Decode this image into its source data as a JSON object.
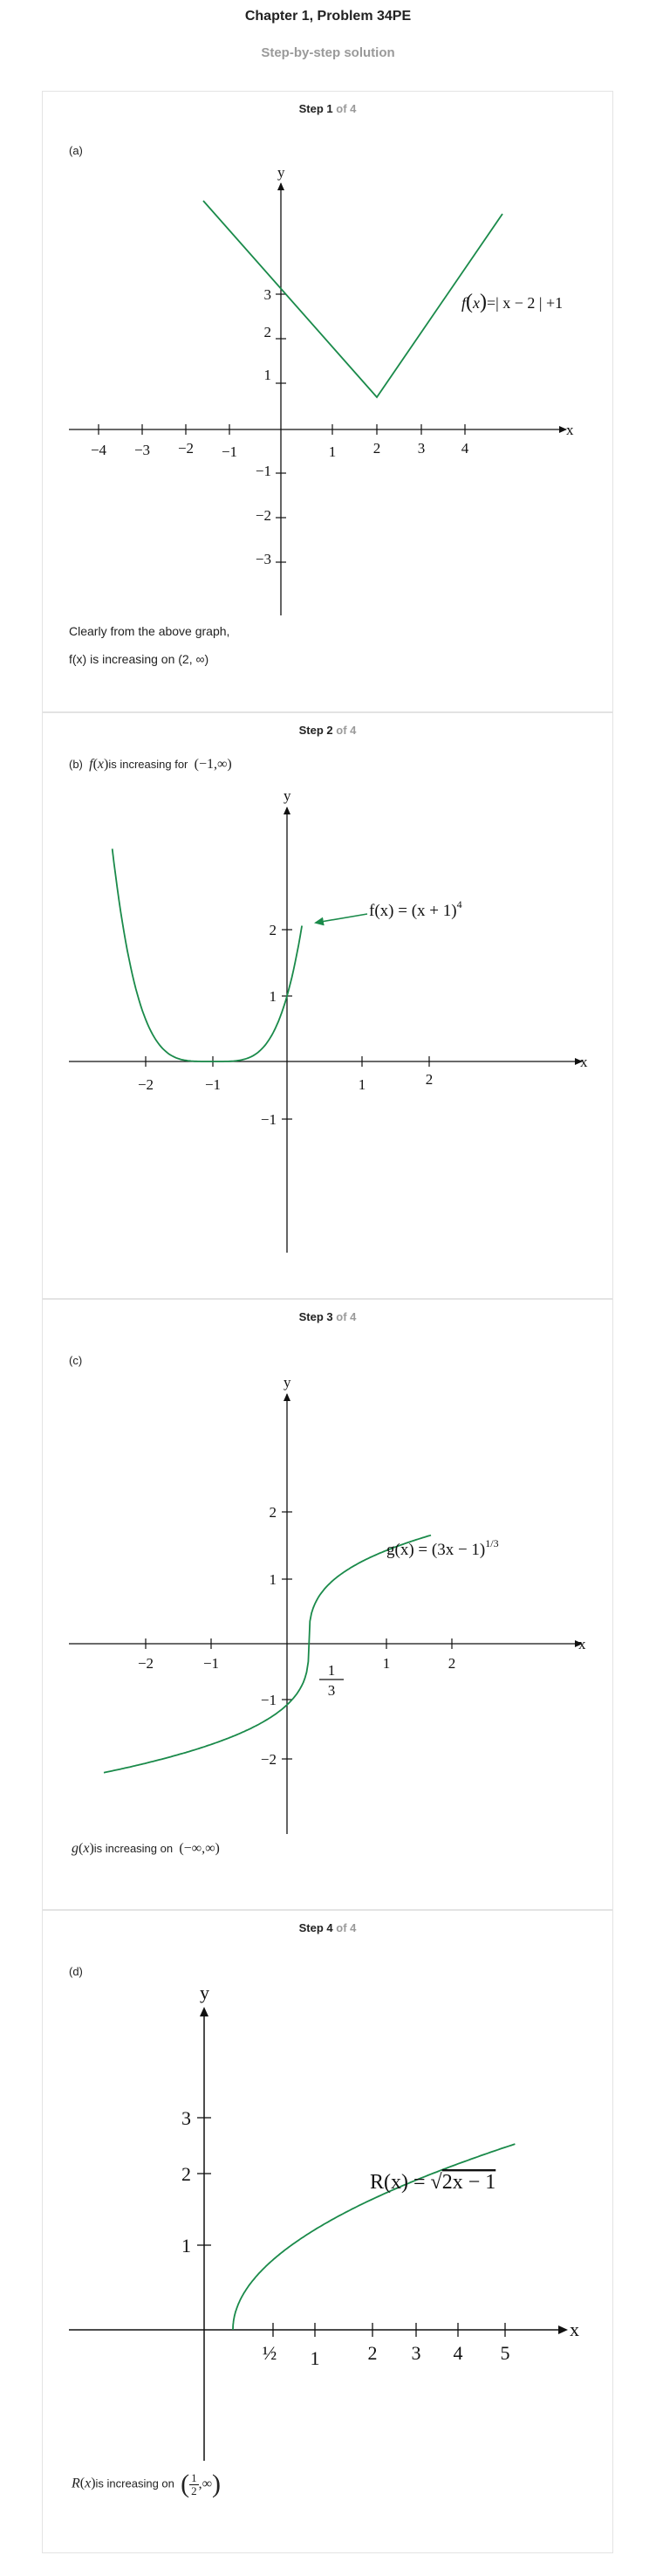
{
  "header": {
    "title": "Chapter 1, Problem 34PE",
    "subtitle": "Step-by-step solution"
  },
  "steps": [
    {
      "num": "Step 1",
      "of": "of 4",
      "label": "(a)",
      "graph": {
        "axis_x": "x",
        "axis_y": "y",
        "x_ticks": [
          "−4",
          "−3",
          "−2",
          "−1",
          "1",
          "2",
          "3",
          "4"
        ],
        "y_ticks": [
          "3",
          "2",
          "1",
          "−1",
          "−2",
          "−3"
        ],
        "formula_f": "f",
        "formula_x": "x",
        "formula_rest": "=| x − 2 | +1"
      },
      "text1": "Clearly from the above graph,",
      "text2": "f(x) is increasing on (2,  ∞)"
    },
    {
      "num": "Step 2",
      "of": "of 4",
      "label": "(b)",
      "lead_f": "f",
      "lead_x": "x",
      "lead_text": "is increasing for",
      "lead_interval": "(−1,∞)",
      "graph": {
        "axis_x": "x",
        "axis_y": "y",
        "x_ticks": [
          "−2",
          "−1",
          "1",
          "2"
        ],
        "y_ticks": [
          "2",
          "1",
          "−1"
        ],
        "formula": "f(x) = (x + 1)",
        "formula_exp": "4"
      }
    },
    {
      "num": "Step 3",
      "of": "of 4",
      "label": "(c)",
      "graph": {
        "axis_x": "x",
        "axis_y": "y",
        "x_ticks": [
          "−2",
          "−1",
          "1",
          "2"
        ],
        "y_ticks": [
          "2",
          "1",
          "−1",
          "−2"
        ],
        "frac_num": "1",
        "frac_den": "3",
        "formula": "g(x) = (3x − 1)",
        "formula_exp": "1/3"
      },
      "footer_g": "g",
      "footer_x": "x",
      "footer_text": "is increasing on",
      "footer_interval": "(−∞,∞)"
    },
    {
      "num": "Step 4",
      "of": "of 4",
      "label": "(d)",
      "graph": {
        "axis_x": "x",
        "axis_y": "y",
        "x_ticks": [
          "½",
          "1",
          "2",
          "3",
          "4",
          "5"
        ],
        "y_ticks": [
          "3",
          "2",
          "1"
        ],
        "formula_left": "R(x) = ",
        "formula_radical": "√",
        "formula_under": "2x − 1"
      },
      "footer_r": "R",
      "footer_x": "x",
      "footer_text": "is increasing on",
      "footer_num": "1",
      "footer_den": "2",
      "footer_tail": ",∞"
    }
  ],
  "colors": {
    "curve": "#1a8a4a",
    "axis": "#111111",
    "border": "#e3e3e3",
    "muted": "#9a9a9a"
  }
}
